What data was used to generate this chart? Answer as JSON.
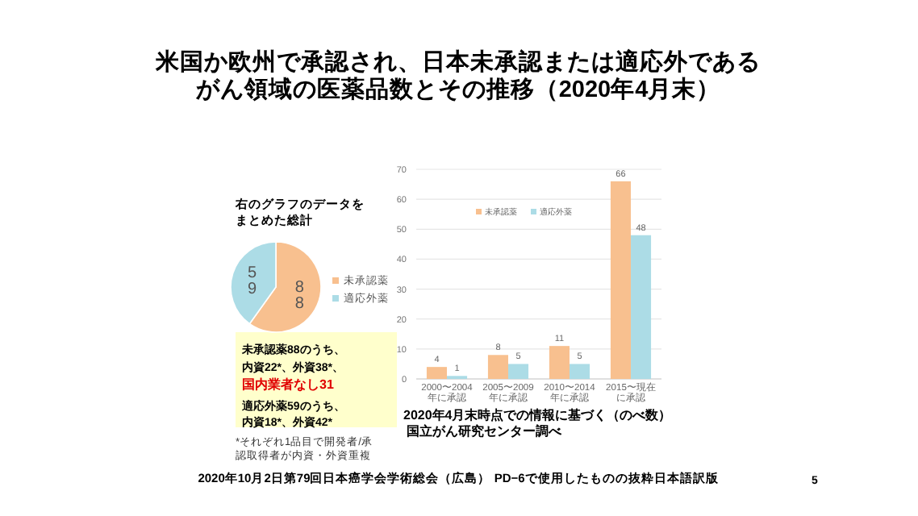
{
  "chart_data": [
    {
      "type": "other",
      "title": "米国か欧州で承認され、日本未承認または適応外であるがん領域の医薬品数とその推移（2020年4月末）",
      "annotations": [
        "未承認薬88のうち、",
        "内資22*、外資38*、",
        "国内業者なし31",
        "適応外薬59のうち、",
        "内資18*、外資42*",
        "*それぞれ1品目で開発者/承認取得者が内資・外資重複",
        "2020年10月2日第79回日本癌学会学術総会（広島） PD−6で使用したものの抜粋日本語訳版",
        "5"
      ]
    },
    {
      "type": "pie",
      "title": "右のグラフのデータをまとめた総計",
      "categories": [
        "未承認薬",
        "適応外薬"
      ],
      "values": [
        88,
        59
      ],
      "colors": [
        "#f8c08f",
        "#acdce6"
      ],
      "data_labels": true,
      "legend": "right"
    },
    {
      "type": "bar",
      "categories": [
        "2000〜2004年に承認",
        "2005〜2009年に承認",
        "2010〜2014年に承認",
        "2015〜現在に承認"
      ],
      "series": [
        {
          "name": "未承認薬",
          "color": "#f8c08f",
          "values": [
            4,
            8,
            11,
            66
          ]
        },
        {
          "name": "適応外薬",
          "color": "#acdce6",
          "values": [
            1,
            5,
            5,
            48
          ]
        }
      ],
      "ylim": [
        0,
        70
      ],
      "yticks": [
        0,
        10,
        20,
        30,
        40,
        50,
        60,
        70
      ],
      "grid": "y",
      "legend": "top",
      "data_labels": true,
      "annotations": [
        "2020年4月末時点での情報に基づく（のべ数）",
        "国立がん研究センター調べ"
      ]
    }
  ]
}
